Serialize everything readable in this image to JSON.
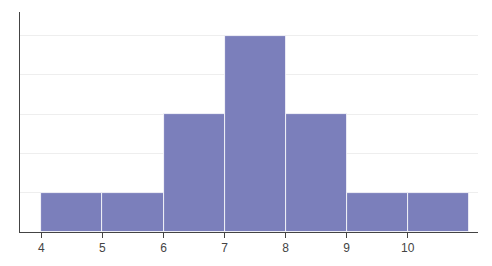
{
  "chart_data": {
    "type": "histogram",
    "bins": [
      4,
      5,
      6,
      7,
      8,
      9,
      10,
      11
    ],
    "values": [
      1,
      1,
      3,
      5,
      3,
      1,
      1
    ],
    "color": "#7b7fbb",
    "xlim": [
      3.65,
      11.15
    ],
    "ylim": [
      0,
      5.6
    ],
    "xticks": [
      4,
      5,
      6,
      7,
      8,
      9,
      10
    ],
    "yticks": [
      1,
      2,
      3,
      4,
      5
    ],
    "grid": true,
    "tick_labels": "x"
  }
}
